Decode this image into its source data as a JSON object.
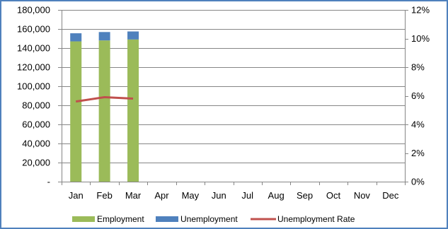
{
  "chart_data": {
    "type": "bar",
    "stacked": true,
    "categories": [
      "Jan",
      "Feb",
      "Mar",
      "Apr",
      "May",
      "Jun",
      "Jul",
      "Aug",
      "Sep",
      "Oct",
      "Nov",
      "Dec"
    ],
    "series": [
      {
        "name": "Employment",
        "kind": "bar",
        "axis": "left",
        "color": "#9bbb59",
        "values": [
          147000,
          148000,
          149000,
          null,
          null,
          null,
          null,
          null,
          null,
          null,
          null,
          null
        ]
      },
      {
        "name": "Unemployment",
        "kind": "bar",
        "axis": "left",
        "color": "#4f81bd",
        "values": [
          8500,
          8800,
          8400,
          null,
          null,
          null,
          null,
          null,
          null,
          null,
          null,
          null
        ]
      },
      {
        "name": "Unemployment Rate",
        "kind": "line",
        "axis": "right",
        "color": "#c0504d",
        "values": [
          0.056,
          0.059,
          0.058,
          null,
          null,
          null,
          null,
          null,
          null,
          null,
          null,
          null
        ]
      }
    ],
    "y_left": {
      "min": 0,
      "max": 180000,
      "step": 20000,
      "tick_labels": [
        "-",
        "20,000",
        "40,000",
        "60,000",
        "80,000",
        "100,000",
        "120,000",
        "140,000",
        "160,000",
        "180,000"
      ]
    },
    "y_right": {
      "min": 0,
      "max": 0.12,
      "step": 0.02,
      "tick_labels": [
        "0%",
        "2%",
        "4%",
        "6%",
        "8%",
        "10%",
        "12%"
      ]
    },
    "grid": true,
    "legend_position": "bottom",
    "border_color": "#4f81bd",
    "gridline_color": "#868686"
  }
}
